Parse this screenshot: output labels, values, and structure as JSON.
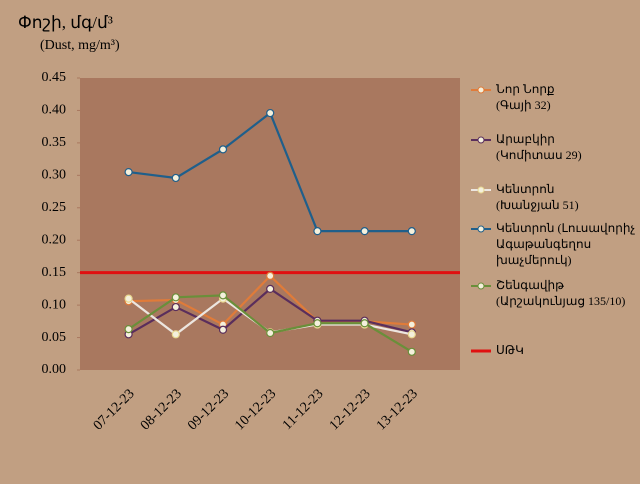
{
  "chart_data": {
    "type": "line",
    "title": "Փոշի, մգ/մ³",
    "subtitle": "(Dust, mg/m³)",
    "categories": [
      "07-12-23",
      "08-12-23",
      "09-12-23",
      "10-12-23",
      "11-12-23",
      "12-12-23",
      "13-12-23"
    ],
    "ylim": [
      0,
      0.45
    ],
    "yticks": [
      {
        "value": 0,
        "label": "0.00"
      },
      0.05,
      {
        "value": 0.1,
        "label": "0.10"
      },
      0.15,
      {
        "value": 0.2,
        "label": "0.20"
      },
      0.25,
      {
        "value": 0.3,
        "label": "0.30"
      },
      0.35,
      {
        "value": 0.4,
        "label": "0.40"
      },
      0.45
    ],
    "series": [
      {
        "name": [
          "Նոր Նորք",
          "(Գայի 32)"
        ],
        "color": "#e07b39",
        "values": [
          0.106,
          0.108,
          0.07,
          0.145,
          0.075,
          0.075,
          0.07
        ]
      },
      {
        "name": [
          "Արաբկիր",
          "(Կոմիտաս 29)"
        ],
        "color": "#5a2e5c",
        "values": [
          0.055,
          0.097,
          0.062,
          0.125,
          0.076,
          0.076,
          0.058
        ]
      },
      {
        "name": [
          "Կենտրոն",
          "(Խանջյան 51)"
        ],
        "color": "#ece6e0",
        "values": [
          0.11,
          0.055,
          0.11,
          0.058,
          0.07,
          0.07,
          0.055
        ]
      },
      {
        "name": [
          "Կենտրոն (Լուսավորիչ",
          "Ագաթանգեղոս",
          "խաչմերուկ)"
        ],
        "color": "#1f5f8b",
        "values": [
          0.305,
          0.296,
          0.34,
          0.396,
          0.214,
          0.214,
          0.214
        ]
      },
      {
        "name": [
          "Շենգավիթ",
          "(Արշակունյաց 135/10)"
        ],
        "color": "#6a8f3a",
        "values": [
          0.063,
          0.112,
          0.115,
          0.057,
          0.072,
          0.072,
          0.028
        ]
      }
    ],
    "threshold": {
      "name": "ՍԹԿ",
      "value": 0.15,
      "color": "#e01010"
    }
  }
}
